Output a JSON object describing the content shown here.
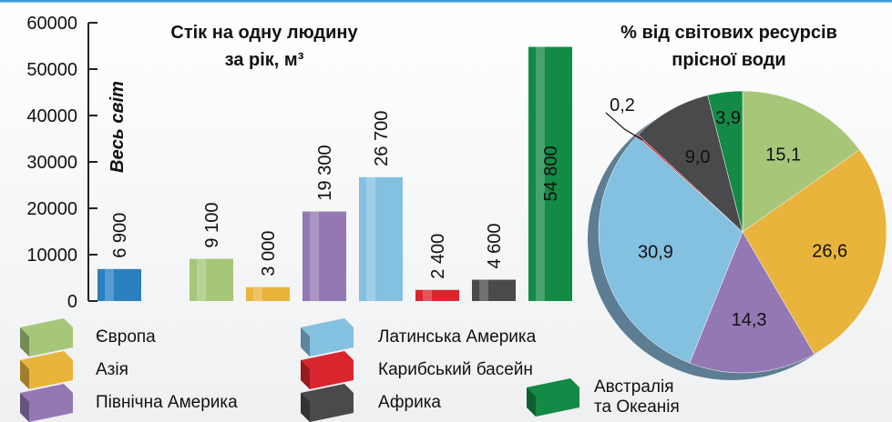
{
  "legend": [
    {
      "name": "Європа",
      "color": "#a6c77a"
    },
    {
      "name": "Азія",
      "color": "#e8b43c"
    },
    {
      "name": "Північна Америка",
      "color": "#9478b3"
    },
    {
      "name": "Латинська Америка",
      "color": "#84c0e0"
    },
    {
      "name": "Карибський басейн",
      "color": "#d9262e"
    },
    {
      "name": "Африка",
      "color": "#4a4a4c"
    },
    {
      "name": "Австралія та Океанія",
      "color": "#138a45"
    }
  ],
  "chart_data": [
    {
      "type": "bar",
      "title": [
        "Стік на одну людину",
        "за рік, м³"
      ],
      "categories": [
        "Весь світ",
        null,
        null,
        null,
        null,
        null,
        null,
        null
      ],
      "values": [
        6900,
        9100,
        3000,
        19300,
        26700,
        2400,
        4600,
        54800
      ],
      "value_labels": [
        "6 900",
        "9 100",
        "3 000",
        "19 300",
        "26 700",
        "2 400",
        "4 600",
        "54 800"
      ],
      "colors": [
        "#2a7fc1",
        "#a6c77a",
        "#e8b43c",
        "#9478b3",
        "#84c0e0",
        "#d9262e",
        "#4a4a4c",
        "#138a45"
      ],
      "ylim": [
        0,
        60000
      ],
      "yticks": [
        0,
        10000,
        20000,
        30000,
        40000,
        50000,
        60000
      ]
    },
    {
      "type": "pie",
      "title": [
        "% від світових ресурсів",
        "прісної води"
      ],
      "values": [
        15.1,
        26.6,
        14.3,
        30.9,
        0.2,
        9.0,
        3.9
      ],
      "value_labels": [
        "15,1",
        "26,6",
        "14,3",
        "30,9",
        "0,2",
        "9,0",
        "3,9"
      ],
      "colors": [
        "#a6c77a",
        "#e8b43c",
        "#9478b3",
        "#84c0e0",
        "#d9262e",
        "#4a4a4c",
        "#138a45"
      ]
    }
  ]
}
